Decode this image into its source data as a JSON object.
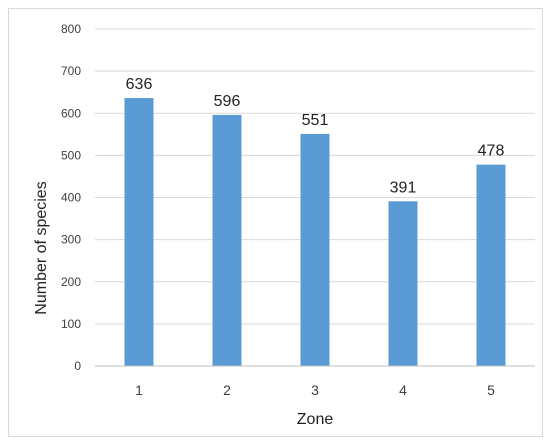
{
  "chart_data": {
    "type": "bar",
    "categories": [
      "1",
      "2",
      "3",
      "4",
      "5"
    ],
    "values": [
      636,
      596,
      551,
      391,
      478
    ],
    "data_labels": [
      "636",
      "596",
      "551",
      "391",
      "478"
    ],
    "xlabel": "Zone",
    "ylabel": "Number of species",
    "ylim": [
      0,
      800
    ],
    "yticks": [
      "0",
      "100",
      "200",
      "300",
      "400",
      "500",
      "600",
      "700",
      "800"
    ],
    "grid": true,
    "legend": "none",
    "colors": {
      "bar": "#5B9BD5",
      "grid": "#d9d9d9",
      "axis": "#bfbfbf"
    }
  }
}
